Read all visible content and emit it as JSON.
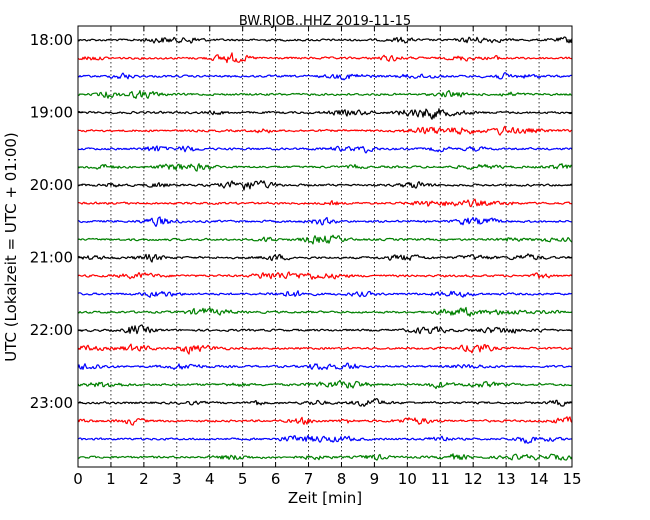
{
  "chart_data": {
    "type": "line",
    "title": "BW.RJOB..HHZ 2019-11-15",
    "xlabel": "Zeit  [min]",
    "ylabel": "UTC (Lokalzeit = UTC + 01:00)",
    "xlim": [
      0,
      15
    ],
    "xticks": [
      "0",
      "1",
      "2",
      "3",
      "4",
      "5",
      "6",
      "7",
      "8",
      "9",
      "10",
      "11",
      "12",
      "13",
      "14",
      "15"
    ],
    "yticks": [
      {
        "label": "18:00",
        "row": 0
      },
      {
        "label": "19:00",
        "row": 4
      },
      {
        "label": "20:00",
        "row": 8
      },
      {
        "label": "21:00",
        "row": 12
      },
      {
        "label": "22:00",
        "row": 16
      },
      {
        "label": "23:00",
        "row": 20
      }
    ],
    "rows": 24,
    "row_minutes": 15,
    "start_time": "18:00",
    "grid": "vertical-dotted",
    "colors": [
      "#000000",
      "#ff0000",
      "#0000ff",
      "#008000"
    ]
  }
}
